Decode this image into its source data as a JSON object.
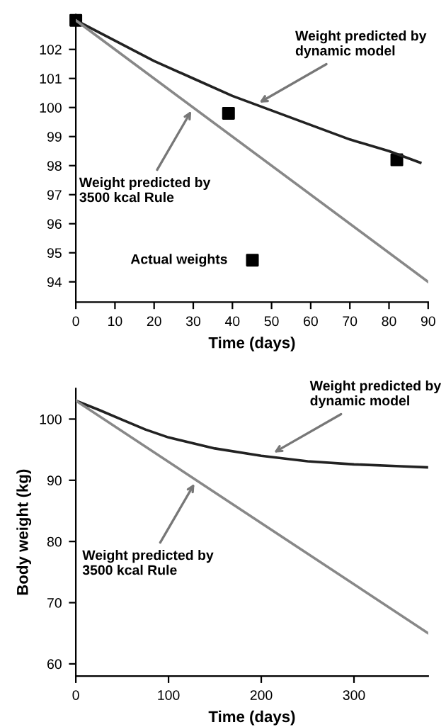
{
  "chart_data": [
    {
      "type": "line",
      "xlabel": "Time (days)",
      "xlim": [
        0,
        90
      ],
      "xticks": [
        0,
        10,
        20,
        30,
        40,
        50,
        60,
        70,
        80,
        90
      ],
      "ylim": [
        93.3,
        103.2
      ],
      "yticks": [
        94,
        95,
        96,
        97,
        98,
        99,
        100,
        101,
        102
      ],
      "grid": false,
      "legend": "bottom left",
      "series": [
        {
          "color": "#222222",
          "x": [
            0,
            10,
            20,
            30,
            40,
            50,
            60,
            70,
            80,
            88
          ],
          "values": [
            103,
            102.3,
            101.6,
            101.0,
            100.4,
            99.9,
            99.4,
            98.9,
            98.5,
            98.1
          ]
        },
        {
          "color": "#888888",
          "x": [
            0,
            90
          ],
          "values": [
            103,
            94
          ]
        },
        {
          "type": "scatter",
          "name": "Actual weights",
          "color": "#000000",
          "marker": "square",
          "x": [
            0,
            39,
            82
          ],
          "values": [
            103,
            99.8,
            98.2
          ]
        }
      ],
      "annotations": [
        {
          "text": "Weight predicted by\ndynamic model",
          "x": 46,
          "y": 100.1
        },
        {
          "text": "Weight predicted by\n3500 kcal Rule",
          "x": 30,
          "y": 100
        }
      ]
    },
    {
      "type": "line",
      "xlabel": "Time (days)",
      "ylabel": "Body weight (kg)",
      "xlim": [
        0,
        380
      ],
      "xticks": [
        0,
        100,
        200,
        300
      ],
      "ylim": [
        58,
        105
      ],
      "yticks": [
        60,
        70,
        80,
        90,
        100
      ],
      "grid": false,
      "series": [
        {
          "color": "#222222",
          "x": [
            0,
            25,
            50,
            75,
            100,
            150,
            200,
            250,
            300,
            350,
            380
          ],
          "values": [
            103,
            101.5,
            99.9,
            98.3,
            97.0,
            95.2,
            94.0,
            93.1,
            92.6,
            92.3,
            92.1
          ]
        },
        {
          "color": "#888888",
          "x": [
            0,
            380
          ],
          "values": [
            103,
            65
          ]
        }
      ],
      "annotations": [
        {
          "text": "Weight predicted by\ndynamic model",
          "x": 210,
          "y": 94.2
        },
        {
          "text": "Weight predicted by\n3500 kcal Rule",
          "x": 130,
          "y": 90
        }
      ]
    }
  ]
}
